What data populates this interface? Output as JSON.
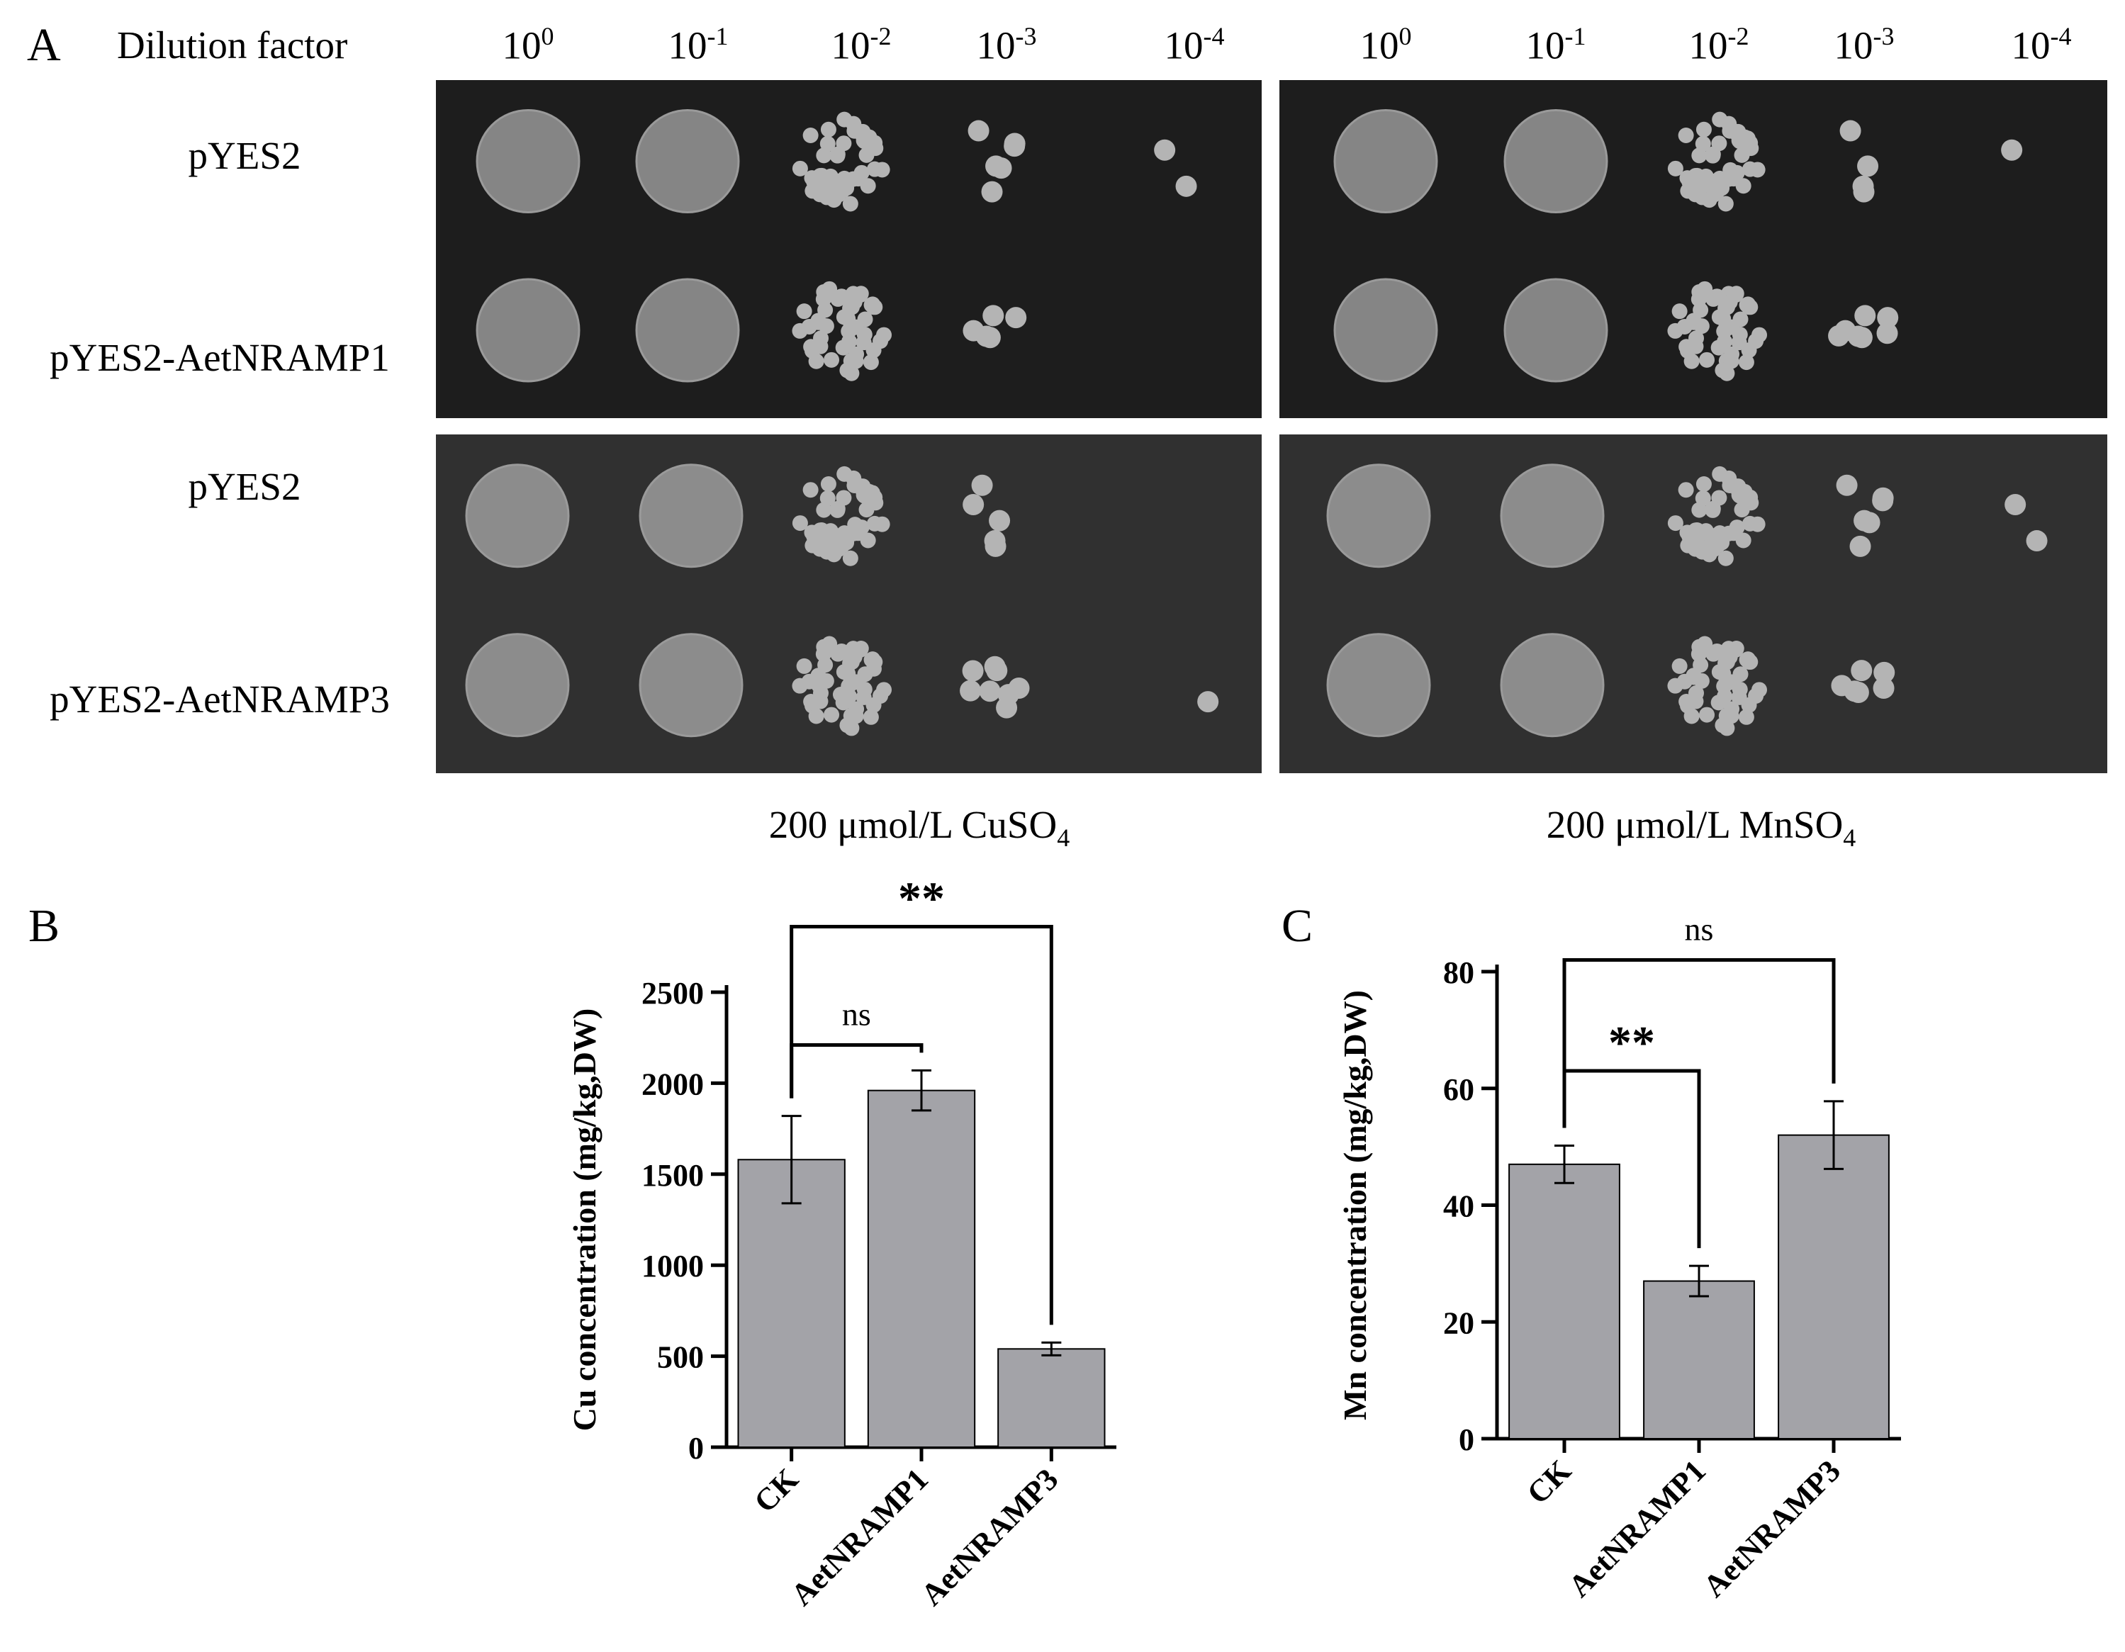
{
  "panel_a": {
    "letter": "A",
    "dilution_header": "Dilution factor",
    "dilutions_left": [
      "10",
      "10",
      "10",
      "10",
      "10"
    ],
    "dilution_exponents_left": [
      "0",
      "-1",
      "-2",
      "-3",
      "-4"
    ],
    "dilutions_right": [
      "10",
      "10",
      "10",
      "10",
      "10"
    ],
    "dilution_exponents_right": [
      "0",
      "-1",
      "-2",
      "-3",
      "-4"
    ],
    "row_labels": [
      "pYES2",
      "pYES2-AetNRAMP1",
      "pYES2",
      "pYES2-AetNRAMP3"
    ],
    "caption_left": "200 μmol/L CuSO",
    "caption_left_sub": "4",
    "caption_right": "200 μmol/L MnSO",
    "caption_right_sub": "4",
    "plates": {
      "top_left": {
        "spot_growth": [
          1.0,
          1.0,
          0.8,
          0.45,
          0.12
        ],
        "spot_growth_row2": [
          1.0,
          1.0,
          0.8,
          0.35,
          0.0
        ]
      },
      "top_right": {
        "spot_growth": [
          1.0,
          1.0,
          0.85,
          0.3,
          0.08
        ],
        "spot_growth_row2": [
          1.0,
          1.0,
          0.8,
          0.5,
          0.0
        ]
      },
      "bottom_left": {
        "spot_growth": [
          1.0,
          1.0,
          0.85,
          0.35,
          0.0
        ],
        "spot_growth_row2": [
          1.0,
          1.0,
          0.85,
          0.55,
          0.06
        ]
      },
      "bottom_right": {
        "spot_growth": [
          1.0,
          1.0,
          0.8,
          0.45,
          0.12
        ],
        "spot_growth_row2": [
          1.0,
          1.0,
          0.8,
          0.45,
          0.0
        ]
      }
    }
  },
  "chart_data": [
    {
      "panel": "B",
      "type": "bar",
      "categories": [
        "CK",
        "AetNRAMP1",
        "AetNRAMP3"
      ],
      "values": [
        1580,
        1960,
        540
      ],
      "errors": [
        240,
        110,
        35
      ],
      "ylabel": "Cu concentration (mg/kg,DW)",
      "xlabel": "",
      "ylim": [
        0,
        2500
      ],
      "yticks": [
        0,
        500,
        1000,
        1500,
        2000,
        2500
      ],
      "bar_color": "#a3a3a8",
      "annotations": [
        {
          "from": 0,
          "to": 1,
          "label": "ns",
          "level": 2210
        },
        {
          "from": 0,
          "to": 2,
          "label": "**",
          "level": 2860
        }
      ]
    },
    {
      "panel": "C",
      "type": "bar",
      "categories": [
        "CK",
        "AetNRAMP1",
        "AetNRAMP3"
      ],
      "values": [
        47,
        27,
        52
      ],
      "errors": [
        3.2,
        2.6,
        5.8
      ],
      "ylabel": "Mn concentration (mg/kg,DW)",
      "xlabel": "",
      "ylim": [
        0,
        80
      ],
      "yticks": [
        0,
        20,
        40,
        60,
        80
      ],
      "bar_color": "#a3a3a8",
      "annotations": [
        {
          "from": 0,
          "to": 1,
          "label": "**",
          "level": 63
        },
        {
          "from": 0,
          "to": 2,
          "label": "ns",
          "level": 82
        }
      ]
    }
  ]
}
